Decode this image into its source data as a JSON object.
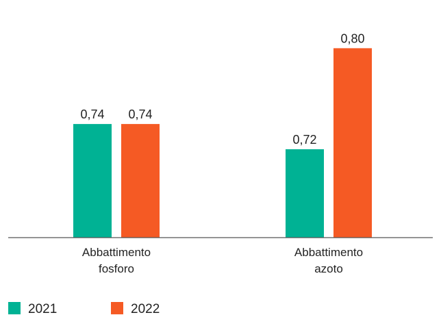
{
  "chart_data": {
    "type": "bar",
    "categories": [
      [
        "Abbattimento",
        "fosforo"
      ],
      [
        "Abbattimento",
        "azoto"
      ]
    ],
    "series": [
      {
        "name": "2021",
        "values": [
          0.74,
          0.72
        ],
        "labels": [
          "0,74",
          "0,72"
        ],
        "color": "#00b294"
      },
      {
        "name": "2022",
        "values": [
          0.74,
          0.8
        ],
        "labels": [
          "0,74",
          "0,80"
        ],
        "color": "#f55a24"
      }
    ],
    "ylim": [
      0.65,
      0.81
    ],
    "grid": false,
    "legend": "bottom-left"
  }
}
